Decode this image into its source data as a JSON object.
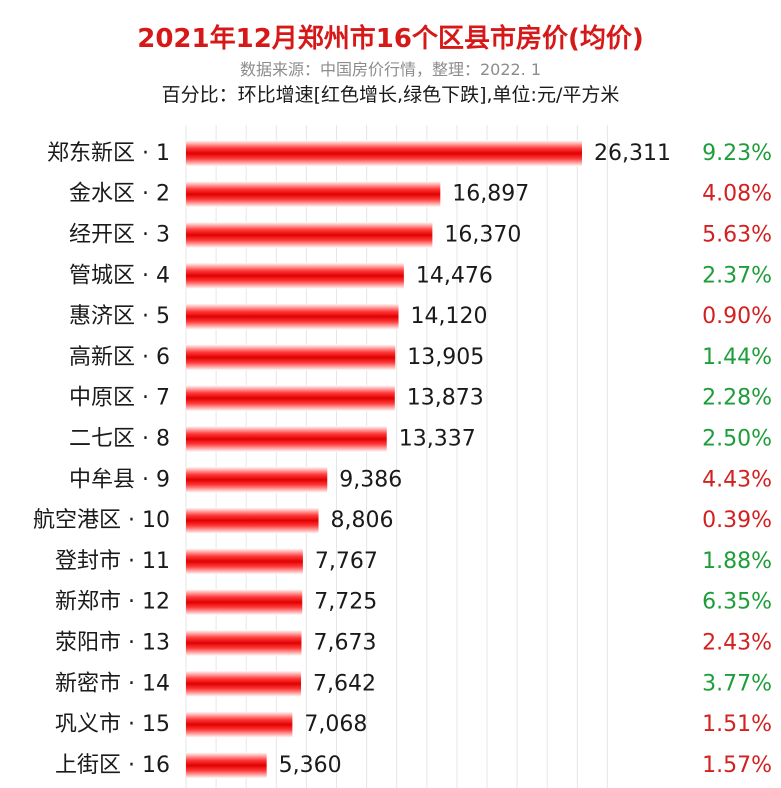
{
  "title": "2021年12月郑州市16个区县市房价(均价)",
  "source": "数据来源：中国房价行情，整理：2022. 1",
  "note": "百分比：环比增速[红色增长,绿色下跌],单位:元/平方米",
  "colors": {
    "bar": "#e60000",
    "up": "#d32020",
    "down": "#1e9e3a",
    "title": "#d71818"
  },
  "chart_data": {
    "type": "bar",
    "orientation": "horizontal",
    "categories": [
      "郑东新区 · 1",
      "金水区 · 2",
      "经开区 · 3",
      "管城区 · 4",
      "惠济区 · 5",
      "高新区 · 6",
      "中原区 · 7",
      "二七区 · 8",
      "中牟县 · 9",
      "航空港区 · 10",
      "登封市 · 11",
      "新郑市 · 12",
      "荥阳市 · 13",
      "新密市 · 14",
      "巩义市 · 15",
      "上街区 · 16"
    ],
    "values": [
      26311,
      16897,
      16370,
      14476,
      14120,
      13905,
      13873,
      13337,
      9386,
      8806,
      7767,
      7725,
      7673,
      7642,
      7068,
      5360
    ],
    "value_labels": [
      "26,311",
      "16,897",
      "16,370",
      "14,476",
      "14,120",
      "13,905",
      "13,873",
      "13,337",
      "9,386",
      "8,806",
      "7,767",
      "7,725",
      "7,673",
      "7,642",
      "7,068",
      "5,360"
    ],
    "change_pct": [
      "9.23%",
      "4.08%",
      "5.63%",
      "2.37%",
      "0.90%",
      "1.44%",
      "2.28%",
      "2.50%",
      "4.43%",
      "0.39%",
      "1.88%",
      "6.35%",
      "2.43%",
      "3.77%",
      "1.51%",
      "1.57%"
    ],
    "change_dir": [
      "down",
      "up",
      "up",
      "down",
      "up",
      "down",
      "down",
      "down",
      "up",
      "up",
      "down",
      "down",
      "up",
      "down",
      "up",
      "up"
    ],
    "xlim": [
      0,
      28000
    ],
    "grid": true
  }
}
